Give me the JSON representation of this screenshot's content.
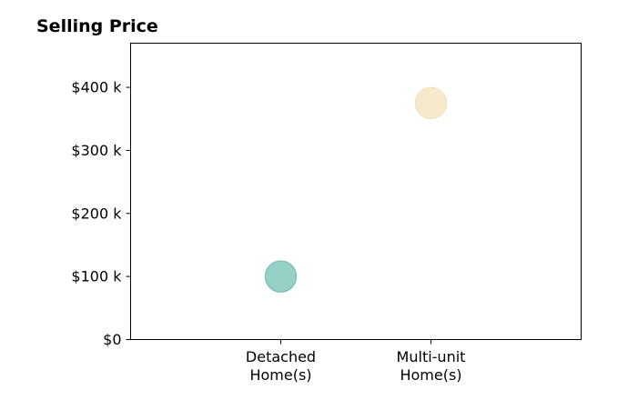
{
  "chart_data": {
    "type": "scatter",
    "title": "Selling Price",
    "xlabel": "",
    "ylabel": "",
    "categories": [
      [
        "Detached",
        "Home(s)"
      ],
      [
        "Multi-unit",
        "Home(s)"
      ]
    ],
    "x_positions": [
      1,
      2
    ],
    "xlim": [
      0,
      3
    ],
    "values": [
      100000,
      375000
    ],
    "ylim": [
      0,
      470000
    ],
    "y_ticks": [
      0,
      100000,
      200000,
      300000,
      400000
    ],
    "y_tick_labels": [
      "$0",
      "$100 k",
      "$200 k",
      "$300 k",
      "$400 k"
    ],
    "point_colors": [
      "#7dc4b8",
      "#f5e3bf"
    ],
    "marker_alpha": 0.8,
    "grid": false,
    "legend": "none"
  }
}
